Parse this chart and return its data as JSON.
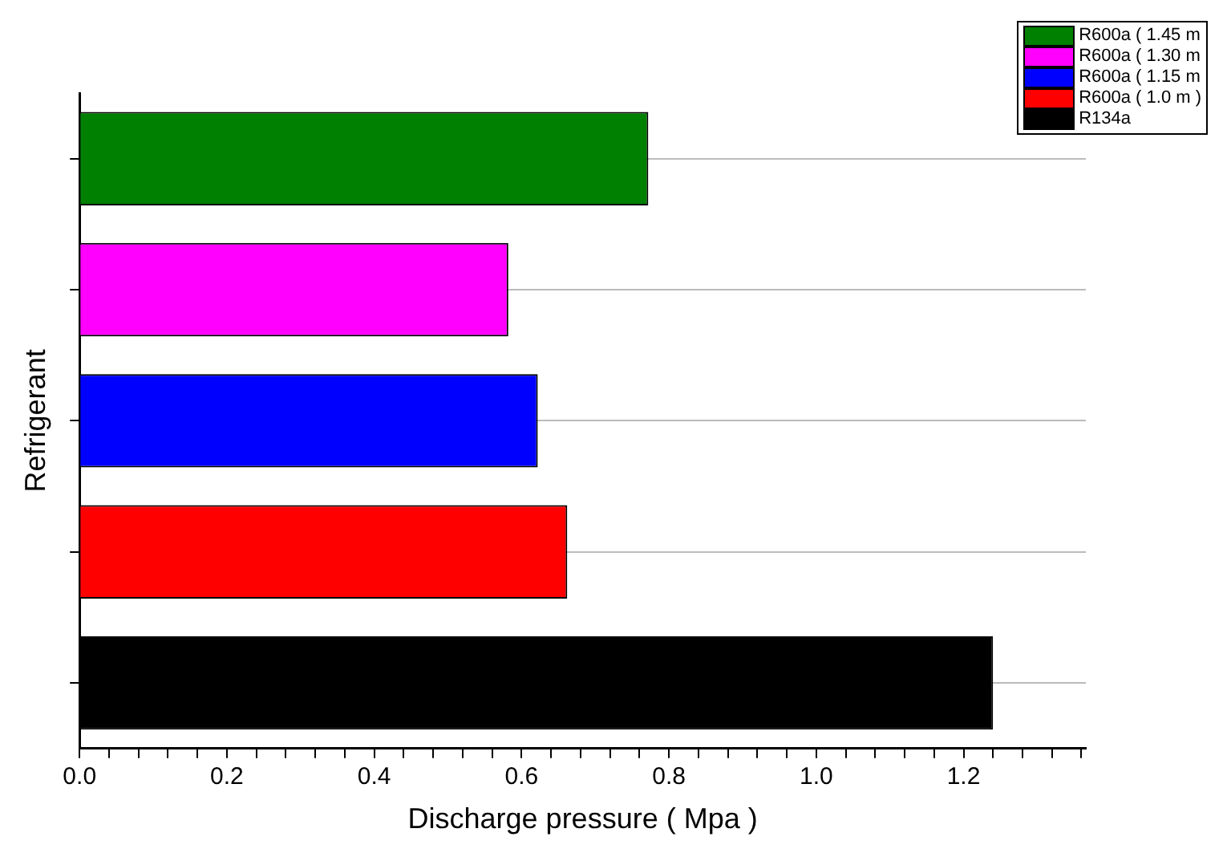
{
  "chart_data": {
    "type": "bar",
    "orientation": "horizontal",
    "xlabel": "Discharge pressure ( Mpa )",
    "ylabel": "Refrigerant",
    "categories": [
      null,
      null,
      null,
      null,
      null
    ],
    "series": [
      {
        "name": "R600a ( 1.45 m",
        "color": "#008000",
        "values": [
          0.772,
          null,
          null,
          null,
          null
        ]
      },
      {
        "name": "R600a ( 1.30 m",
        "color": "#ff00ff",
        "values": [
          null,
          0.582,
          null,
          null,
          null
        ]
      },
      {
        "name": "R600a ( 1.15 m",
        "color": "#0000ff",
        "values": [
          null,
          null,
          0.622,
          null,
          null
        ]
      },
      {
        "name": "R600a ( 1.0 m )",
        "color": "#ff0000",
        "values": [
          null,
          null,
          null,
          0.662,
          null
        ]
      },
      {
        "name": "R134a",
        "color": "#000000",
        "values": [
          null,
          null,
          null,
          null,
          1.24
        ]
      }
    ],
    "xlim": [
      0,
      1.366
    ],
    "xticks": [
      {
        "value": 0,
        "label": "0.0"
      },
      {
        "value": 0.04,
        "label": null
      },
      {
        "value": 0.08,
        "label": null
      },
      {
        "value": 0.12,
        "label": null
      },
      {
        "value": 0.16,
        "label": null
      },
      {
        "value": 0.2,
        "label": "0.2"
      },
      {
        "value": 0.24,
        "label": null
      },
      {
        "value": 0.28,
        "label": null
      },
      {
        "value": 0.32,
        "label": null
      },
      {
        "value": 0.36,
        "label": null
      },
      {
        "value": 0.4,
        "label": "0.4"
      },
      {
        "value": 0.44,
        "label": null
      },
      {
        "value": 0.48,
        "label": null
      },
      {
        "value": 0.52,
        "label": null
      },
      {
        "value": 0.56,
        "label": null
      },
      {
        "value": 0.6,
        "label": "0.6"
      },
      {
        "value": 0.64,
        "label": null
      },
      {
        "value": 0.68,
        "label": null
      },
      {
        "value": 0.72,
        "label": null
      },
      {
        "value": 0.76,
        "label": null
      },
      {
        "value": 0.8,
        "label": "0.8"
      },
      {
        "value": 0.84,
        "label": null
      },
      {
        "value": 0.88,
        "label": null
      },
      {
        "value": 0.92,
        "label": null
      },
      {
        "value": 0.96,
        "label": null
      },
      {
        "value": 1.0,
        "label": "1.0"
      },
      {
        "value": 1.04,
        "label": null
      },
      {
        "value": 1.08,
        "label": null
      },
      {
        "value": 1.12,
        "label": null
      },
      {
        "value": 1.16,
        "label": null
      },
      {
        "value": 1.2,
        "label": "1.2"
      },
      {
        "value": 1.24,
        "label": null
      },
      {
        "value": 1.28,
        "label": null
      },
      {
        "value": 1.32,
        "label": null
      },
      {
        "value": 1.36,
        "label": null
      }
    ],
    "grid": "y",
    "legend": "top right"
  }
}
